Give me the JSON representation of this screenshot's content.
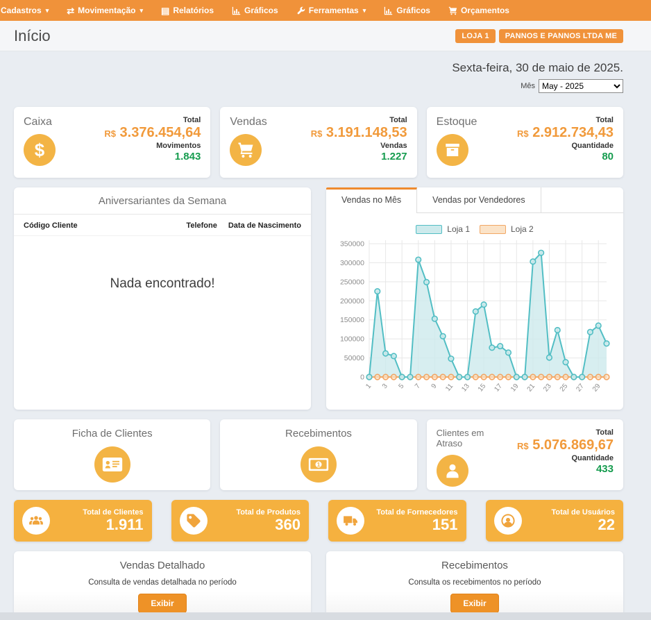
{
  "nav": {
    "items": [
      {
        "label": "Cadastros",
        "caret": "▾"
      },
      {
        "label": "Movimentação",
        "caret": "▾"
      },
      {
        "label": "Relatórios",
        "caret": ""
      },
      {
        "label": "Gráficos",
        "caret": ""
      },
      {
        "label": "Ferramentas",
        "caret": "▾"
      },
      {
        "label": "Gráficos",
        "caret": ""
      },
      {
        "label": "Orçamentos",
        "caret": ""
      }
    ]
  },
  "header": {
    "title": "Início",
    "badges": [
      "LOJA 1",
      "PANNOS E PANNOS LTDA ME"
    ],
    "date": "Sexta-feira, 30 de maio de 2025.",
    "month_label": "Mês",
    "month_value": "May - 2025"
  },
  "summary_cards": [
    {
      "title": "Caixa",
      "total_label": "Total",
      "currency": "R$",
      "total": "3.376.454,64",
      "count_label": "Movimentos",
      "count": "1.843"
    },
    {
      "title": "Vendas",
      "total_label": "Total",
      "currency": "R$",
      "total": "3.191.148,53",
      "count_label": "Vendas",
      "count": "1.227"
    },
    {
      "title": "Estoque",
      "total_label": "Total",
      "currency": "R$",
      "total": "2.912.734,43",
      "count_label": "Quantidade",
      "count": "80"
    }
  ],
  "birthdays": {
    "title": "Aniversariantes da Semana",
    "columns": [
      "Código Cliente",
      "Telefone",
      "Data de Nascimento"
    ],
    "empty_text": "Nada encontrado!"
  },
  "sales_panel": {
    "tabs": [
      "Vendas no Mês",
      "Vendas por Vendedores"
    ]
  },
  "chart_data": {
    "type": "area",
    "title": "Vendas no Mês",
    "x": [
      1,
      2,
      3,
      4,
      5,
      6,
      7,
      8,
      9,
      10,
      11,
      12,
      13,
      14,
      15,
      16,
      17,
      18,
      19,
      20,
      21,
      22,
      23,
      24,
      25,
      26,
      27,
      28,
      29,
      30
    ],
    "series": [
      {
        "name": "Loja 1",
        "values": [
          0,
          225000,
          62000,
          55000,
          0,
          0,
          308000,
          249000,
          153000,
          107000,
          48000,
          0,
          0,
          172000,
          190000,
          77000,
          81000,
          64000,
          0,
          0,
          303000,
          326000,
          51000,
          123000,
          39000,
          0,
          0,
          118000,
          135000,
          88000
        ],
        "color": "#52bec4",
        "fill": "#cdeaec"
      },
      {
        "name": "Loja 2",
        "values": [
          0,
          0,
          0,
          0,
          0,
          0,
          0,
          0,
          0,
          0,
          0,
          0,
          0,
          0,
          0,
          0,
          0,
          0,
          0,
          0,
          0,
          0,
          0,
          0,
          0,
          0,
          0,
          0,
          0,
          0
        ],
        "color": "#f2a765",
        "fill": "#fbe3c8"
      }
    ],
    "ylim": [
      0,
      350000
    ],
    "ytick_step": 50000,
    "xtick_every": 2,
    "grid": true,
    "legend_position": "top"
  },
  "action_cards": [
    {
      "title": "Ficha de Clientes"
    },
    {
      "title": "Recebimentos"
    }
  ],
  "overdue_card": {
    "title": "Clientes em Atraso",
    "total_label": "Total",
    "currency": "R$",
    "total": "5.076.869,67",
    "count_label": "Quantidade",
    "count": "433"
  },
  "totals": [
    {
      "label": "Total de Clientes",
      "value": "1.911"
    },
    {
      "label": "Total de Produtos",
      "value": "360"
    },
    {
      "label": "Total de Fornecedores",
      "value": "151"
    },
    {
      "label": "Total de Usuários",
      "value": "22"
    }
  ],
  "report_cards": [
    {
      "title": "Vendas Detalhado",
      "description": "Consulta de vendas detalhada no período",
      "button": "Exibir"
    },
    {
      "title": "Recebimentos",
      "description": "Consulta os recebimentos no período",
      "button": "Exibir"
    }
  ],
  "colors": {
    "accent_orange": "#f0923a",
    "gold": "#f3b445",
    "money_orange": "#f19a3b",
    "green": "#169c4f",
    "teal": "#52bec4",
    "chart_orange": "#f2a765"
  }
}
